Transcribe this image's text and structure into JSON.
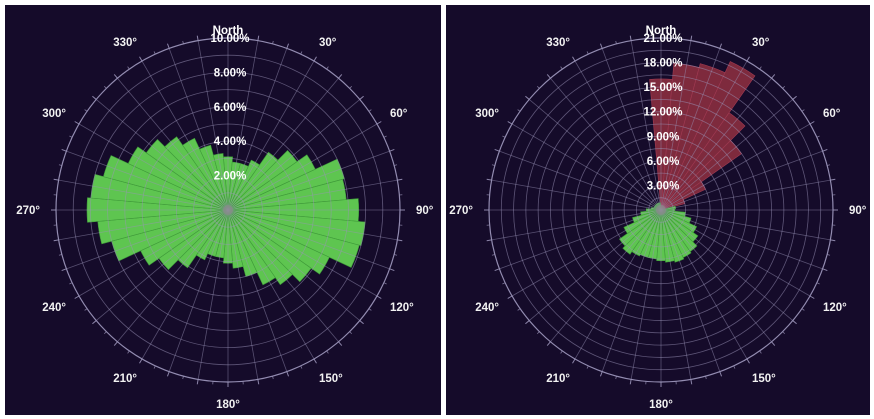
{
  "colors": {
    "background": "#150b2a",
    "grid": "#9a94b8",
    "green": "#5ec550",
    "green_edge": "#3f9a3a",
    "red": "#7e2a3d",
    "red_edge": "#a03a52",
    "label": "#ffffff"
  },
  "chart_data": [
    {
      "type": "polar-bar",
      "name": "",
      "north_label": "North",
      "angle_labels": [
        "30°",
        "60°",
        "90°",
        "120°",
        "150°",
        "180°",
        "210°",
        "240°",
        "270°",
        "300°",
        "330°"
      ],
      "radial_labels": [
        "2.00%",
        "4.00%",
        "6.00%",
        "8.00%",
        "10.00%"
      ],
      "rmax": 10,
      "ring_step": 1,
      "sector_width_deg": 10,
      "grid": true,
      "series": [
        {
          "color": "green",
          "directions": [
            0,
            10,
            20,
            30,
            40,
            50,
            60,
            70,
            80,
            90,
            100,
            110,
            120,
            130,
            140,
            150,
            160,
            170,
            180,
            190,
            200,
            210,
            220,
            230,
            240,
            250,
            260,
            270,
            280,
            290,
            300,
            310,
            320,
            330,
            340,
            350
          ],
          "values": [
            3.1,
            2.8,
            2.8,
            3.2,
            4.1,
            4.9,
            5.6,
            7.0,
            6.9,
            7.6,
            8.0,
            7.9,
            6.5,
            5.9,
            5.3,
            4.8,
            4.0,
            3.4,
            3.1,
            2.8,
            2.8,
            3.2,
            4.1,
            4.9,
            5.6,
            7.0,
            7.6,
            8.2,
            8.0,
            7.5,
            6.4,
            5.8,
            5.2,
            4.6,
            3.9,
            3.3
          ]
        }
      ]
    },
    {
      "type": "polar-bar",
      "name": "",
      "north_label": "North",
      "angle_labels": [
        "30°",
        "60°",
        "90°",
        "120°",
        "150°",
        "180°",
        "210°",
        "240°",
        "270°",
        "300°",
        "330°"
      ],
      "radial_labels": [
        "3.00%",
        "6.00%",
        "9.00%",
        "12.00%",
        "15.00%",
        "18.00%",
        "21.00%"
      ],
      "rmax": 21,
      "ring_step": 1.5,
      "sector_width_deg": 10,
      "grid": true,
      "series": [
        {
          "color": "red",
          "directions": [
            0,
            10,
            20,
            30,
            40,
            50,
            60,
            70
          ],
          "values": [
            16.0,
            18.0,
            18.5,
            20.0,
            14.5,
            12.0,
            6.0,
            3.0
          ]
        },
        {
          "color": "green",
          "directions": [
            80,
            90,
            100,
            110,
            120,
            130,
            140,
            150,
            160,
            170,
            180,
            190,
            200,
            210,
            220,
            230,
            240,
            250,
            260,
            270,
            280,
            290,
            300,
            310,
            320,
            330,
            340,
            350
          ],
          "values": [
            1.8,
            1.7,
            3.0,
            3.8,
            4.8,
            5.5,
            6.2,
            6.4,
            6.6,
            6.4,
            6.2,
            6.0,
            6.0,
            6.2,
            6.6,
            6.2,
            5.0,
            3.6,
            2.5,
            1.8,
            1.2,
            0.9,
            0.9,
            0.9,
            0.9,
            0.9,
            0.9,
            0.9
          ]
        }
      ]
    }
  ]
}
